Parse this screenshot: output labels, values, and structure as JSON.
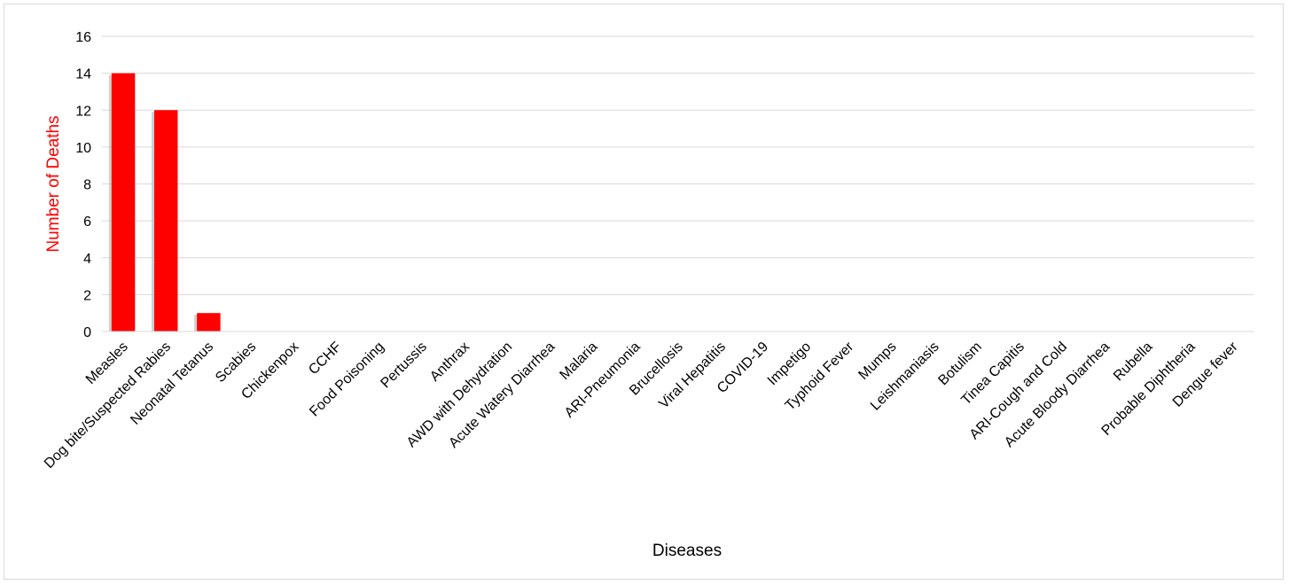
{
  "chart_data": {
    "type": "bar",
    "title": "",
    "xlabel": "Diseases",
    "ylabel": "Number of Deaths",
    "ylim": [
      0,
      16
    ],
    "yticks": [
      0,
      2,
      4,
      6,
      8,
      10,
      12,
      14,
      16
    ],
    "grid": true,
    "legend": "none",
    "bar_color": "#ff0000",
    "ylabel_color": "#ff0000",
    "categories": [
      "Measles",
      "Dog bite/Suspected Rabies",
      "Neonatal Tetanus",
      "Scabies",
      "Chickenpox",
      "CCHF",
      "Food Poisoning",
      "Pertussis",
      "Anthrax",
      "AWD with Dehydration",
      "Acute Watery Diarrhea",
      "Malaria",
      "ARI-Pneumonia",
      "Brucellosis",
      "Viral Hepatitis",
      "COVID-19",
      "Impetigo",
      "Typhoid Fever",
      "Mumps",
      "Leishmaniasis",
      "Botulism",
      "Tinea Capitis",
      "ARI-Cough and Cold",
      "Acute Bloody Diarrhea",
      "Rubella",
      "Probable Diphtheria",
      "Dengue fever"
    ],
    "values": [
      14,
      12,
      1,
      0,
      0,
      0,
      0,
      0,
      0,
      0,
      0,
      0,
      0,
      0,
      0,
      0,
      0,
      0,
      0,
      0,
      0,
      0,
      0,
      0,
      0,
      0,
      0
    ]
  }
}
